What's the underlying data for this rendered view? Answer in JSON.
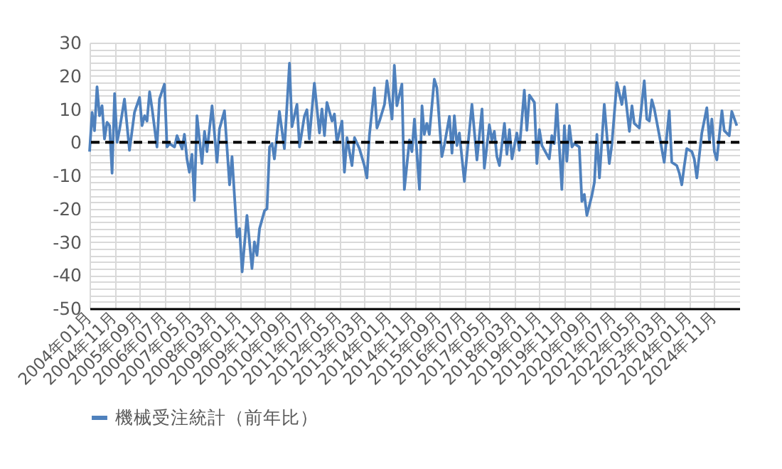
{
  "chart_data": {
    "type": "line",
    "x": [
      "2004-01",
      "2004-02",
      "2004-03",
      "2004-04",
      "2004-05",
      "2004-06",
      "2004-07",
      "2004-08",
      "2004-09",
      "2004-10",
      "2004-11",
      "2004-12",
      "2005-01",
      "2005-03",
      "2005-05",
      "2005-07",
      "2005-09",
      "2005-10",
      "2005-11",
      "2005-12",
      "2006-01",
      "2006-02",
      "2006-04",
      "2006-05",
      "2006-07",
      "2006-08",
      "2006-09",
      "2006-11",
      "2006-12",
      "2007-02",
      "2007-03",
      "2007-04",
      "2007-05",
      "2007-06",
      "2007-07",
      "2007-08",
      "2007-10",
      "2007-11",
      "2007-12",
      "2008-02",
      "2008-04",
      "2008-05",
      "2008-07",
      "2008-09",
      "2008-10",
      "2008-12",
      "2009-01",
      "2009-02",
      "2009-04",
      "2009-06",
      "2009-07",
      "2009-08",
      "2009-09",
      "2009-11",
      "2009-12",
      "2010-01",
      "2010-02",
      "2010-03",
      "2010-05",
      "2010-07",
      "2010-09",
      "2010-10",
      "2010-12",
      "2011-01",
      "2011-03",
      "2011-04",
      "2011-05",
      "2011-07",
      "2011-09",
      "2011-10",
      "2011-11",
      "2011-12",
      "2012-02",
      "2012-03",
      "2012-04",
      "2012-06",
      "2012-07",
      "2012-08",
      "2012-10",
      "2012-11",
      "2013-01",
      "2013-03",
      "2013-04",
      "2013-05",
      "2013-07",
      "2013-08",
      "2013-09",
      "2013-11",
      "2013-12",
      "2014-02",
      "2014-03",
      "2014-04",
      "2014-06",
      "2014-07",
      "2014-09",
      "2014-10",
      "2014-11",
      "2015-01",
      "2015-02",
      "2015-03",
      "2015-04",
      "2015-05",
      "2015-07",
      "2015-08",
      "2015-10",
      "2015-11",
      "2016-01",
      "2016-02",
      "2016-03",
      "2016-04",
      "2016-05",
      "2016-07",
      "2016-10",
      "2016-12",
      "2017-02",
      "2017-03",
      "2017-05",
      "2017-06",
      "2017-07",
      "2017-08",
      "2017-09",
      "2017-11",
      "2017-12",
      "2018-01",
      "2018-02",
      "2018-04",
      "2018-05",
      "2018-07",
      "2018-08",
      "2018-09",
      "2018-11",
      "2018-12",
      "2019-01",
      "2019-02",
      "2019-05",
      "2019-06",
      "2019-07",
      "2019-08",
      "2019-10",
      "2019-11",
      "2019-12",
      "2020-01",
      "2020-02",
      "2020-03",
      "2020-05",
      "2020-06",
      "2020-07",
      "2020-08",
      "2020-10",
      "2020-11",
      "2020-12",
      "2021-01",
      "2021-03",
      "2021-05",
      "2021-06",
      "2021-07",
      "2021-08",
      "2021-10",
      "2021-11",
      "2022-01",
      "2022-02",
      "2022-03",
      "2022-05",
      "2022-07",
      "2022-08",
      "2022-09",
      "2022-10",
      "2022-11",
      "2023-01",
      "2023-03",
      "2023-05",
      "2023-06",
      "2023-08",
      "2023-09",
      "2023-10",
      "2023-11",
      "2023-12",
      "2024-02",
      "2024-03",
      "2024-04",
      "2024-06",
      "2024-08",
      "2024-09",
      "2024-10",
      "2024-11",
      "2024-12",
      "2025-02",
      "2025-03",
      "2025-05",
      "2025-06",
      "2025-08"
    ],
    "series": [
      {
        "name": "機械受注統計（前年比）",
        "color": "#4f81bd",
        "values": [
          -2.8,
          9,
          3.5,
          16.7,
          8,
          11,
          1,
          6,
          5,
          -9.3,
          14.7,
          0,
          4,
          13,
          -2.4,
          9,
          13.5,
          5,
          8,
          6.4,
          15.2,
          10,
          -1.4,
          13,
          17.5,
          -1.4,
          -0.4,
          -1.4,
          2,
          -2,
          2.4,
          -5,
          -9,
          -3.6,
          -17.5,
          8,
          -6.4,
          3.3,
          -2.8,
          11,
          -6,
          4,
          9.5,
          -12.8,
          -4.3,
          -28.5,
          -26,
          -39,
          -22,
          -38,
          -30,
          -34,
          -26,
          -20.6,
          -20,
          -1.4,
          -0.4,
          -5,
          9.3,
          -1.9,
          23.8,
          4.7,
          11.4,
          -1.4,
          7.8,
          9.8,
          1,
          17.8,
          2.8,
          10,
          2,
          12,
          6.4,
          8.5,
          0,
          6.4,
          -9,
          1.4,
          -7,
          1.4,
          -2,
          -7,
          -10.7,
          2,
          16.4,
          4.3,
          6.4,
          11.4,
          18.5,
          7,
          23.2,
          11,
          17.5,
          -14.2,
          0.7,
          -2.8,
          7,
          -14.2,
          11,
          2.4,
          5.7,
          2.4,
          19,
          16.4,
          -4.3,
          -0.7,
          7.8,
          -3.3,
          8,
          -1,
          2.8,
          -11.8,
          11.4,
          -5.3,
          10,
          -7.8,
          5.3,
          0.7,
          3.3,
          -4.3,
          -7,
          5.7,
          -3.6,
          3.8,
          -5,
          2.8,
          -2.4,
          15.7,
          3.6,
          14.2,
          12,
          -6.4,
          3.8,
          -1,
          -5,
          2,
          -0.4,
          11.4,
          -14.2,
          5,
          -5.7,
          5,
          -1.4,
          -0.4,
          -1.4,
          -17.8,
          -15.7,
          -22,
          -16,
          -12,
          2.4,
          -10.7,
          11.4,
          -6.4,
          -0.7,
          8.5,
          18,
          11.4,
          16.7,
          3.3,
          11,
          5.7,
          4.3,
          18.5,
          7,
          6.4,
          12.8,
          10,
          2,
          -6,
          9.5,
          -6,
          -7,
          -9.3,
          -12.8,
          -7,
          -1.9,
          -2.8,
          -5,
          -10.7,
          2.8,
          10.4,
          0.7,
          7,
          -2.8,
          -5.3,
          9.5,
          3.5,
          2,
          9.3,
          5
        ]
      }
    ],
    "xlim": [
      "2004-01",
      "2025-09"
    ],
    "xticks": [
      {
        "value": "2004-01",
        "label": "2004年01月"
      },
      {
        "value": "2004-11",
        "label": "2004年11月"
      },
      {
        "value": "2005-09",
        "label": "2005年09月"
      },
      {
        "value": "2006-07",
        "label": "2006年07月"
      },
      {
        "value": "2007-05",
        "label": "2007年05月"
      },
      {
        "value": "2008-03",
        "label": "2008年03月"
      },
      {
        "value": "2009-01",
        "label": "2009年01月"
      },
      {
        "value": "2009-11",
        "label": "2009年11月"
      },
      {
        "value": "2010-09",
        "label": "2010年09月"
      },
      {
        "value": "2011-07",
        "label": "2011年07月"
      },
      {
        "value": "2012-05",
        "label": "2012年05月"
      },
      {
        "value": "2013-03",
        "label": "2013年03月"
      },
      {
        "value": "2014-01",
        "label": "2014年01月"
      },
      {
        "value": "2014-11",
        "label": "2014年11月"
      },
      {
        "value": "2015-09",
        "label": "2015年09月"
      },
      {
        "value": "2016-07",
        "label": "2016年07月"
      },
      {
        "value": "2017-05",
        "label": "2017年05月"
      },
      {
        "value": "2018-03",
        "label": "2018年03月"
      },
      {
        "value": "2019-01",
        "label": "2019年01月"
      },
      {
        "value": "2019-11",
        "label": "2019年11月"
      },
      {
        "value": "2020-09",
        "label": "2020年09月"
      },
      {
        "value": "2021-07",
        "label": "2021年07月"
      },
      {
        "value": "2022-05",
        "label": "2022年05月"
      },
      {
        "value": "2023-03",
        "label": "2023年03月"
      },
      {
        "value": "2024-01",
        "label": "2024年01月"
      },
      {
        "value": "2024-11",
        "label": "2024年11月"
      }
    ],
    "ylim": [
      -50,
      30
    ],
    "yticks": [
      -50,
      {
        "value": -48,
        "label": null
      },
      {
        "value": -46,
        "label": null
      },
      {
        "value": -44,
        "label": null
      },
      {
        "value": -42,
        "label": null
      },
      -40,
      {
        "value": -38,
        "label": null
      },
      {
        "value": -36,
        "label": null
      },
      {
        "value": -34,
        "label": null
      },
      {
        "value": -32,
        "label": null
      },
      -30,
      {
        "value": -28,
        "label": null
      },
      {
        "value": -26,
        "label": null
      },
      {
        "value": -24,
        "label": null
      },
      {
        "value": -22,
        "label": null
      },
      -20,
      {
        "value": -18,
        "label": null
      },
      {
        "value": -16,
        "label": null
      },
      {
        "value": -14,
        "label": null
      },
      {
        "value": -12,
        "label": null
      },
      -10,
      {
        "value": -8,
        "label": null
      },
      {
        "value": -6,
        "label": null
      },
      {
        "value": -4,
        "label": null
      },
      {
        "value": -2,
        "label": null
      },
      0,
      {
        "value": 2,
        "label": null
      },
      {
        "value": 4,
        "label": null
      },
      {
        "value": 6,
        "label": null
      },
      {
        "value": 8,
        "label": null
      },
      10,
      {
        "value": 12,
        "label": null
      },
      {
        "value": 14,
        "label": null
      },
      {
        "value": 16,
        "label": null
      },
      {
        "value": 18,
        "label": null
      },
      20,
      {
        "value": 22,
        "label": null
      },
      {
        "value": 24,
        "label": null
      },
      {
        "value": 26,
        "label": null
      },
      {
        "value": 28,
        "label": null
      },
      30
    ],
    "ref_lines": [
      {
        "axis": "y",
        "value": 0,
        "color": "#000000",
        "line_style": "dashed"
      }
    ],
    "grid": true,
    "legend": "bottom",
    "marker": "none",
    "line_style": "solid"
  }
}
